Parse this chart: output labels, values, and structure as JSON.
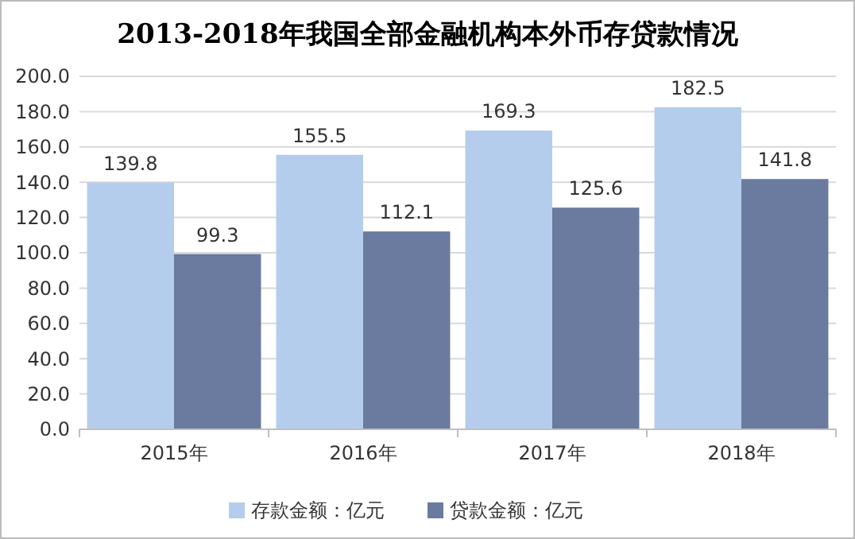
{
  "chart_data": {
    "type": "bar",
    "title": "2013-2018年我国全部金融机构本外币存贷款情况",
    "categories": [
      "2015年",
      "2016年",
      "2017年",
      "2018年"
    ],
    "series": [
      {
        "name": "存款金额：亿元",
        "color": "#b4cdec",
        "values": [
          139.8,
          155.5,
          169.3,
          182.5
        ]
      },
      {
        "name": "贷款金额：亿元",
        "color": "#6a7b9f",
        "values": [
          99.3,
          112.1,
          125.6,
          141.8
        ]
      }
    ],
    "ylim": [
      0,
      200
    ],
    "yticks": [
      {
        "value": 0,
        "label": "0.0"
      },
      {
        "value": 20,
        "label": "20.0"
      },
      {
        "value": 40,
        "label": "40.0"
      },
      {
        "value": 60,
        "label": "60.0"
      },
      {
        "value": 80,
        "label": "80.0"
      },
      {
        "value": 100,
        "label": "100.0"
      },
      {
        "value": 120,
        "label": "120.0"
      },
      {
        "value": 140,
        "label": "140.0"
      },
      {
        "value": 160,
        "label": "160.0"
      },
      {
        "value": 180,
        "label": "180.0"
      },
      {
        "value": 200,
        "label": "200.0"
      }
    ],
    "grid": "y",
    "legend": "bottom",
    "data_labels": true
  }
}
